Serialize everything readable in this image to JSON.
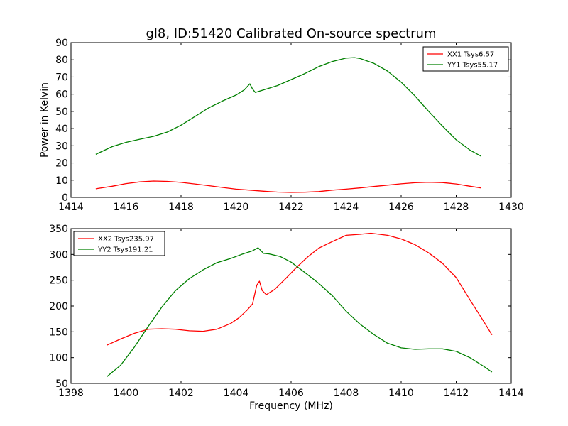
{
  "title": "gl8, ID:51420 Calibrated On-source spectrum",
  "colors": {
    "xx": "#ff0000",
    "yy": "#008000",
    "axes": "#000000",
    "background": "#ffffff"
  },
  "chart_data": [
    {
      "type": "line",
      "title": "gl8, ID:51420 Calibrated On-source spectrum",
      "xlabel": "",
      "ylabel": "Power in Kelvin",
      "xlim": [
        1414,
        1430
      ],
      "ylim": [
        0,
        90
      ],
      "xticks": [
        "1414",
        "1416",
        "1418",
        "1420",
        "1422",
        "1424",
        "1426",
        "1428",
        "1430"
      ],
      "yticks": [
        "0",
        "10",
        "20",
        "30",
        "40",
        "50",
        "60",
        "70",
        "80",
        "90"
      ],
      "grid": false,
      "legend_position": "top-right",
      "series": [
        {
          "name": "XX1 Tsys6.57",
          "color": "#ff0000",
          "x": [
            1414.9,
            1415.5,
            1416.0,
            1416.5,
            1417.0,
            1417.5,
            1418.0,
            1418.5,
            1419.0,
            1419.5,
            1420.0,
            1420.5,
            1421.0,
            1421.5,
            1422.0,
            1422.5,
            1423.0,
            1423.5,
            1424.0,
            1424.5,
            1425.0,
            1425.5,
            1426.0,
            1426.5,
            1427.0,
            1427.5,
            1428.0,
            1428.5,
            1428.9
          ],
          "y": [
            5.0,
            6.5,
            8.0,
            9.0,
            9.5,
            9.3,
            8.7,
            7.8,
            6.8,
            5.8,
            4.8,
            4.2,
            3.6,
            3.1,
            2.9,
            3.0,
            3.4,
            4.2,
            4.8,
            5.5,
            6.3,
            7.1,
            7.9,
            8.5,
            8.8,
            8.6,
            7.8,
            6.5,
            5.5
          ]
        },
        {
          "name": "YY1 Tsys55.17",
          "color": "#008000",
          "x": [
            1414.9,
            1415.5,
            1416.0,
            1416.5,
            1417.0,
            1417.5,
            1418.0,
            1418.5,
            1419.0,
            1419.5,
            1420.0,
            1420.3,
            1420.5,
            1420.6,
            1420.7,
            1421.0,
            1421.5,
            1422.0,
            1422.5,
            1423.0,
            1423.5,
            1424.0,
            1424.3,
            1424.5,
            1425.0,
            1425.5,
            1426.0,
            1426.5,
            1427.0,
            1427.5,
            1428.0,
            1428.5,
            1428.9
          ],
          "y": [
            25.0,
            29.5,
            32.0,
            33.8,
            35.5,
            38.0,
            42.0,
            47.0,
            52.0,
            56.0,
            59.5,
            62.5,
            66.0,
            63.0,
            61.0,
            62.5,
            65.0,
            68.5,
            72.0,
            76.0,
            79.0,
            81.0,
            81.3,
            80.8,
            78.0,
            73.5,
            67.0,
            59.0,
            50.0,
            41.5,
            33.5,
            27.5,
            24.0
          ]
        }
      ]
    },
    {
      "type": "line",
      "title": "",
      "xlabel": "Frequency (MHz)",
      "ylabel": "",
      "xlim": [
        1398,
        1414
      ],
      "ylim": [
        50,
        350
      ],
      "xticks": [
        "1398",
        "1400",
        "1402",
        "1404",
        "1406",
        "1408",
        "1410",
        "1412",
        "1414"
      ],
      "yticks": [
        "50",
        "100",
        "150",
        "200",
        "250",
        "300",
        "350"
      ],
      "grid": false,
      "legend_position": "top-left",
      "series": [
        {
          "name": "XX2 Tsys235.97",
          "color": "#ff0000",
          "x": [
            1399.3,
            1399.8,
            1400.3,
            1400.8,
            1401.3,
            1401.8,
            1402.3,
            1402.8,
            1403.3,
            1403.8,
            1404.1,
            1404.4,
            1404.6,
            1404.75,
            1404.85,
            1404.95,
            1405.1,
            1405.4,
            1405.8,
            1406.2,
            1406.6,
            1407.0,
            1407.5,
            1408.0,
            1408.5,
            1408.9,
            1409.5,
            1410.0,
            1410.5,
            1411.0,
            1411.5,
            1412.0,
            1412.5,
            1413.0,
            1413.3
          ],
          "y": [
            124,
            136,
            147,
            155,
            156,
            155,
            152,
            151,
            155,
            166,
            177,
            192,
            204,
            240,
            248,
            230,
            222,
            232,
            253,
            275,
            295,
            312,
            325,
            337,
            339,
            341,
            337,
            330,
            319,
            303,
            283,
            255,
            212,
            170,
            144
          ]
        },
        {
          "name": "YY2 Tsys191.21",
          "color": "#008000",
          "x": [
            1399.3,
            1399.8,
            1400.3,
            1400.8,
            1401.3,
            1401.8,
            1402.3,
            1402.8,
            1403.3,
            1403.8,
            1404.2,
            1404.6,
            1404.8,
            1405.0,
            1405.2,
            1405.6,
            1406.0,
            1406.5,
            1407.0,
            1407.5,
            1408.0,
            1408.5,
            1409.0,
            1409.5,
            1410.0,
            1410.5,
            1411.0,
            1411.5,
            1412.0,
            1412.5,
            1413.0,
            1413.3
          ],
          "y": [
            63,
            85,
            120,
            160,
            198,
            230,
            253,
            270,
            284,
            292,
            300,
            307,
            313,
            302,
            301,
            296,
            285,
            265,
            244,
            220,
            190,
            165,
            145,
            128,
            119,
            116,
            117,
            117,
            112,
            100,
            83,
            72
          ]
        }
      ]
    }
  ]
}
